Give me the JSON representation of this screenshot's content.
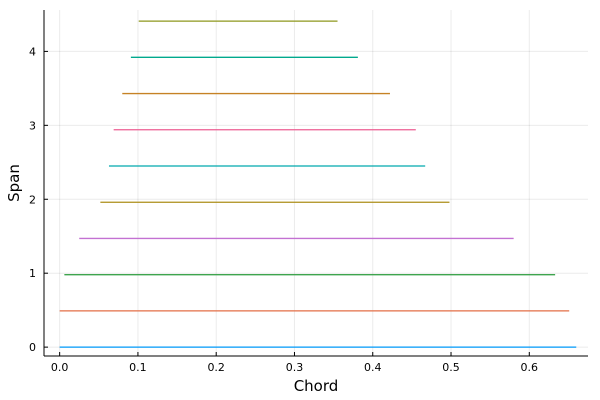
{
  "chart_data": {
    "type": "line",
    "title": "",
    "xlabel": "Chord",
    "ylabel": "Span",
    "xlim": [
      -0.02,
      0.675
    ],
    "ylim": [
      -0.12,
      4.56
    ],
    "x_ticks": [
      0.0,
      0.1,
      0.2,
      0.3,
      0.4,
      0.5,
      0.6
    ],
    "x_tick_labels": [
      "0.0",
      "0.1",
      "0.2",
      "0.3",
      "0.4",
      "0.5",
      "0.6"
    ],
    "y_ticks": [
      0,
      1,
      2,
      3,
      4
    ],
    "y_tick_labels": [
      "0",
      "1",
      "2",
      "3",
      "4"
    ],
    "grid": true,
    "legend": "none",
    "series": [
      {
        "color": "#009AFA",
        "x": [
          0.0,
          0.66
        ],
        "y": [
          0.0,
          0.0
        ]
      },
      {
        "color": "#E36F47",
        "x": [
          0.0,
          0.651
        ],
        "y": [
          0.49,
          0.49
        ]
      },
      {
        "color": "#3EA44E",
        "x": [
          0.006,
          0.633
        ],
        "y": [
          0.98,
          0.98
        ]
      },
      {
        "color": "#C371D2",
        "x": [
          0.025,
          0.58
        ],
        "y": [
          1.47,
          1.47
        ]
      },
      {
        "color": "#AC8E18",
        "x": [
          0.052,
          0.498
        ],
        "y": [
          1.96,
          1.96
        ]
      },
      {
        "color": "#00A9AD",
        "x": [
          0.063,
          0.467
        ],
        "y": [
          2.45,
          2.45
        ]
      },
      {
        "color": "#ED5E93",
        "x": [
          0.069,
          0.455
        ],
        "y": [
          2.94,
          2.94
        ]
      },
      {
        "color": "#C68225",
        "x": [
          0.08,
          0.422
        ],
        "y": [
          3.43,
          3.43
        ]
      },
      {
        "color": "#00A98D",
        "x": [
          0.091,
          0.381
        ],
        "y": [
          3.92,
          3.92
        ]
      },
      {
        "color": "#8E971D",
        "x": [
          0.101,
          0.355
        ],
        "y": [
          4.41,
          4.41
        ]
      }
    ]
  }
}
